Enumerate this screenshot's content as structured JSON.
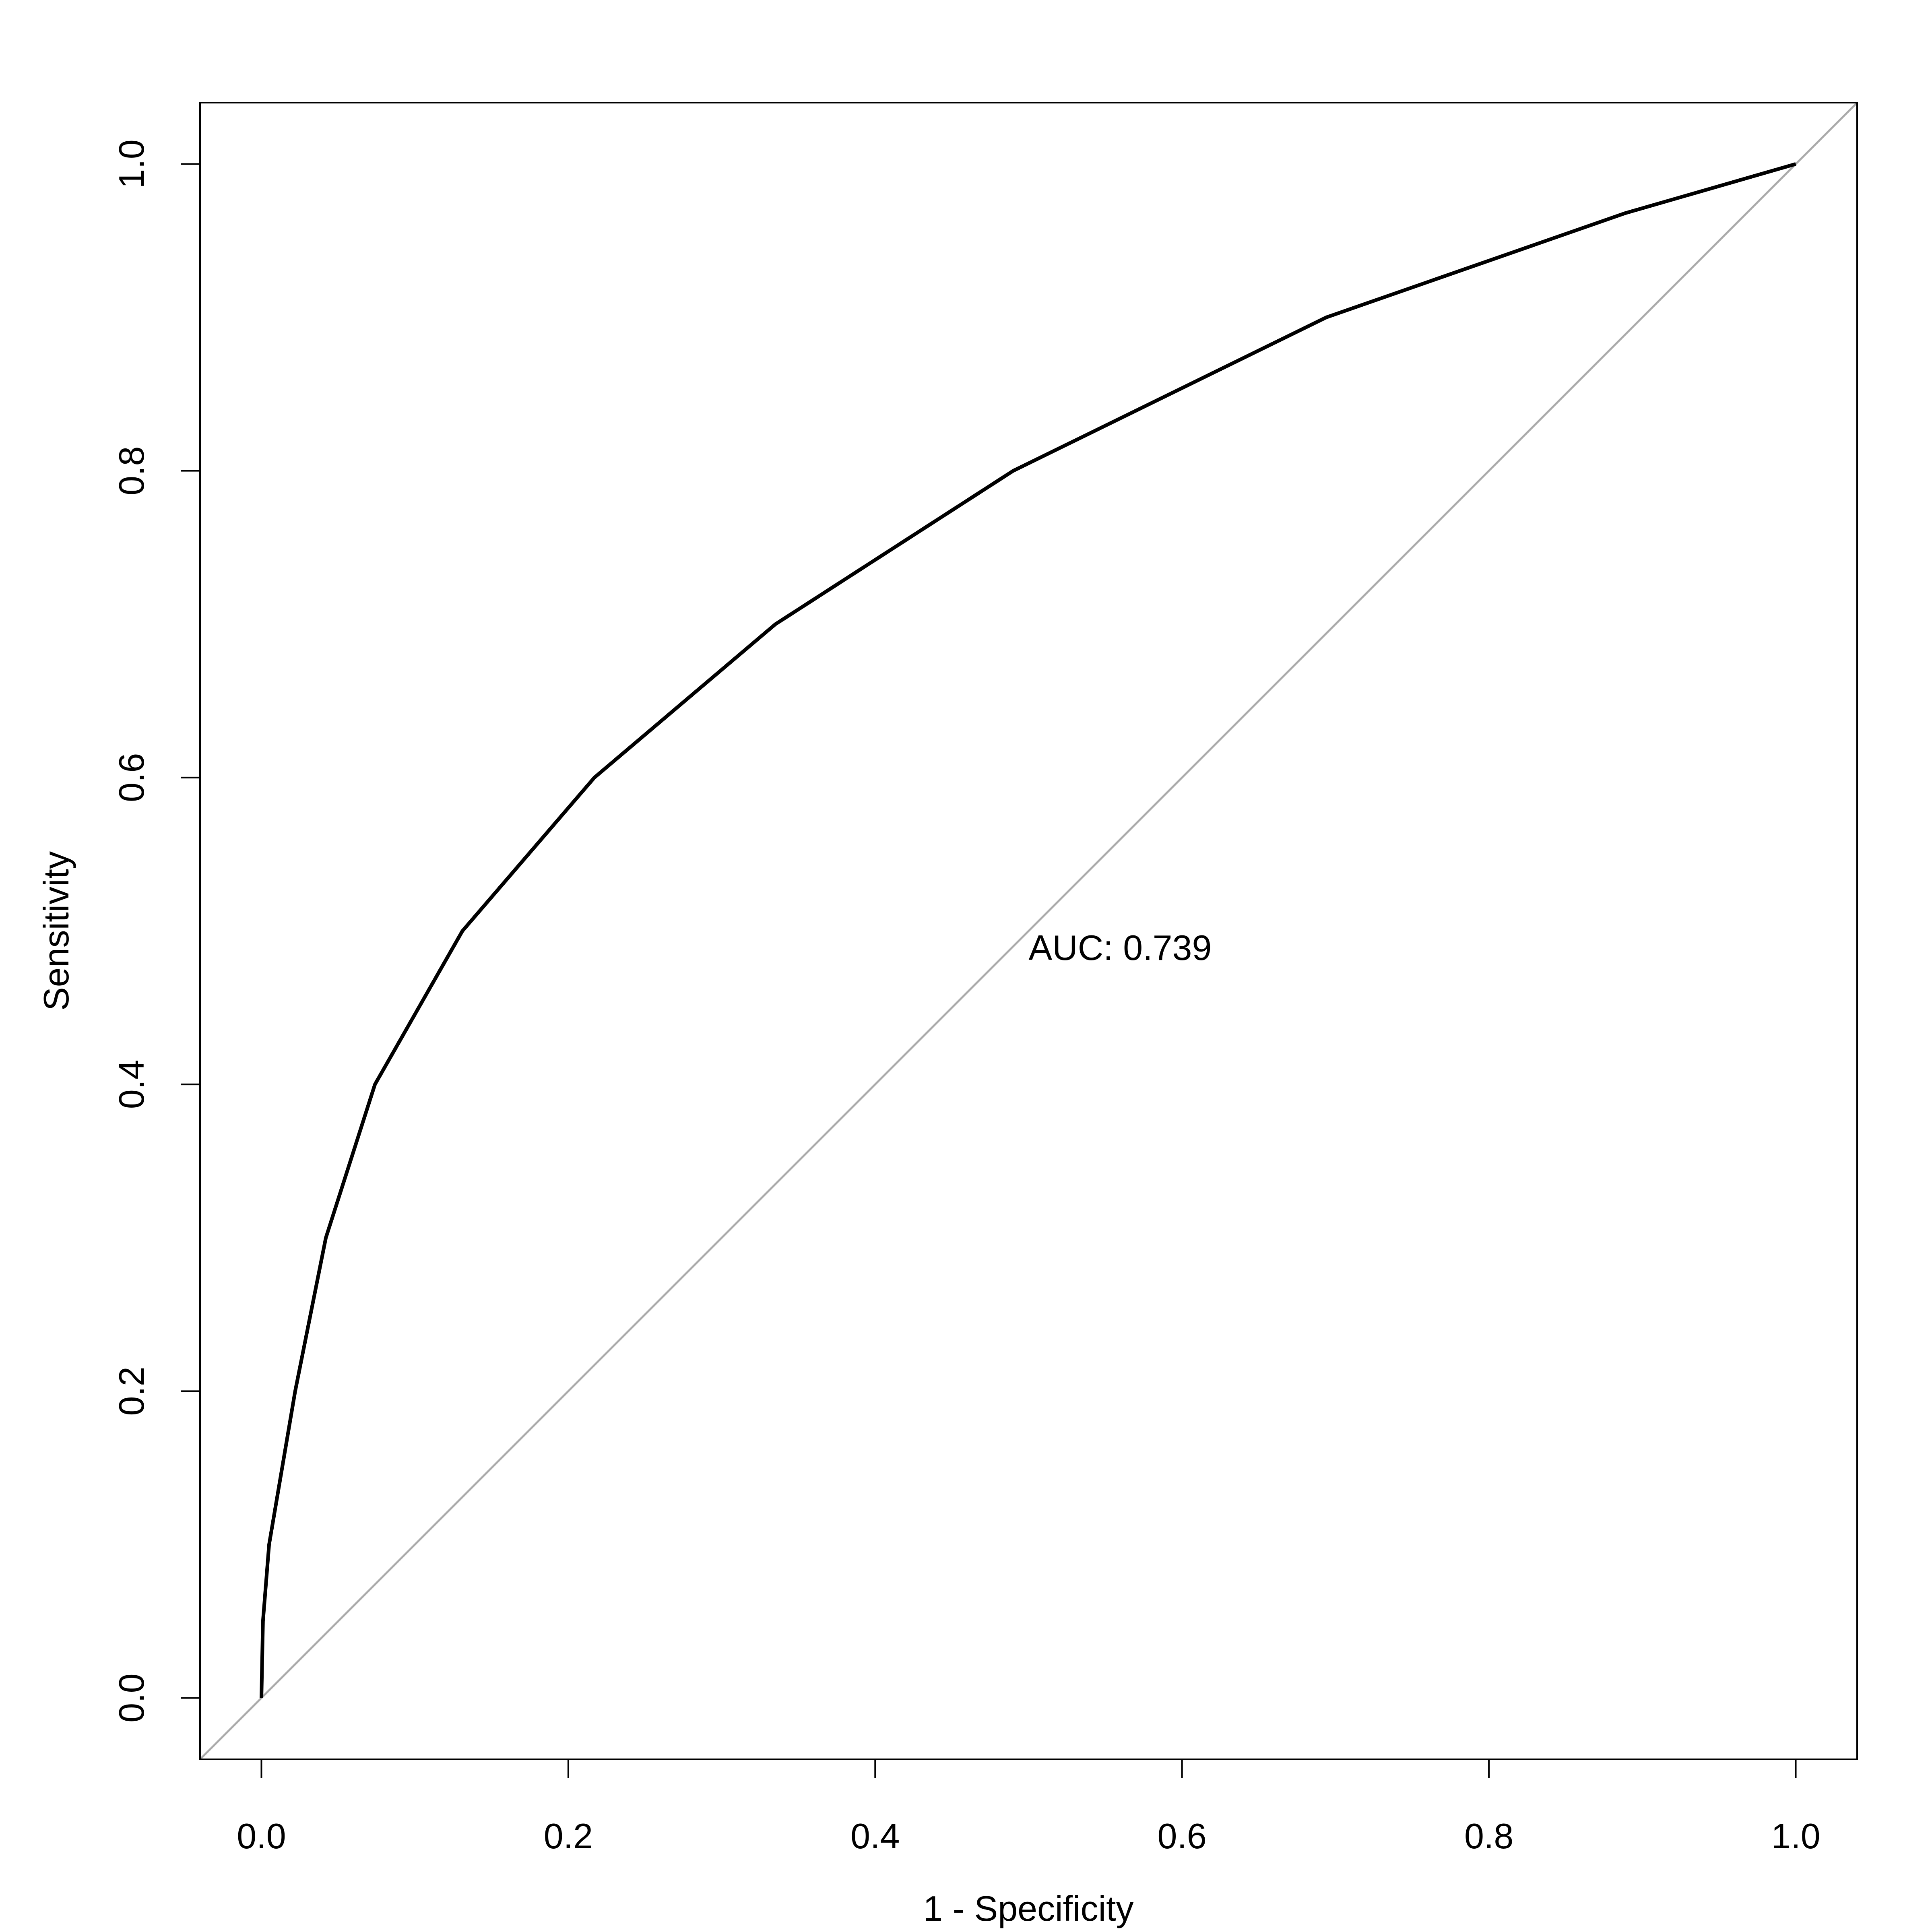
{
  "chart_data": {
    "type": "line",
    "x_label": "1 - Specificity",
    "y_label": "Sensitivity",
    "annotation": "AUC: 0.739",
    "x": [
      0,
      0.001,
      0.005,
      0.022,
      0.042,
      0.074,
      0.131,
      0.217,
      0.335,
      0.49,
      0.694,
      0.889,
      1
    ],
    "series": [
      {
        "color": "#000000",
        "values": [
          0,
          0.05,
          0.1,
          0.2,
          0.3,
          0.4,
          0.5,
          0.6,
          0.7,
          0.8,
          0.9,
          0.968,
          1
        ]
      }
    ],
    "xlim": [
      -0.04,
      1.04
    ],
    "ylim": [
      -0.04,
      1.04
    ],
    "xticks": [
      {
        "value": 0,
        "label": "0.0"
      },
      0.2,
      0.4,
      0.6,
      0.8,
      {
        "value": 1,
        "label": "1.0"
      }
    ],
    "yticks": [
      {
        "value": 0,
        "label": "0.0"
      },
      0.2,
      0.4,
      0.6,
      0.8,
      {
        "value": 1,
        "label": "1.0"
      }
    ],
    "diagonal_color": "#aaaaaa"
  }
}
